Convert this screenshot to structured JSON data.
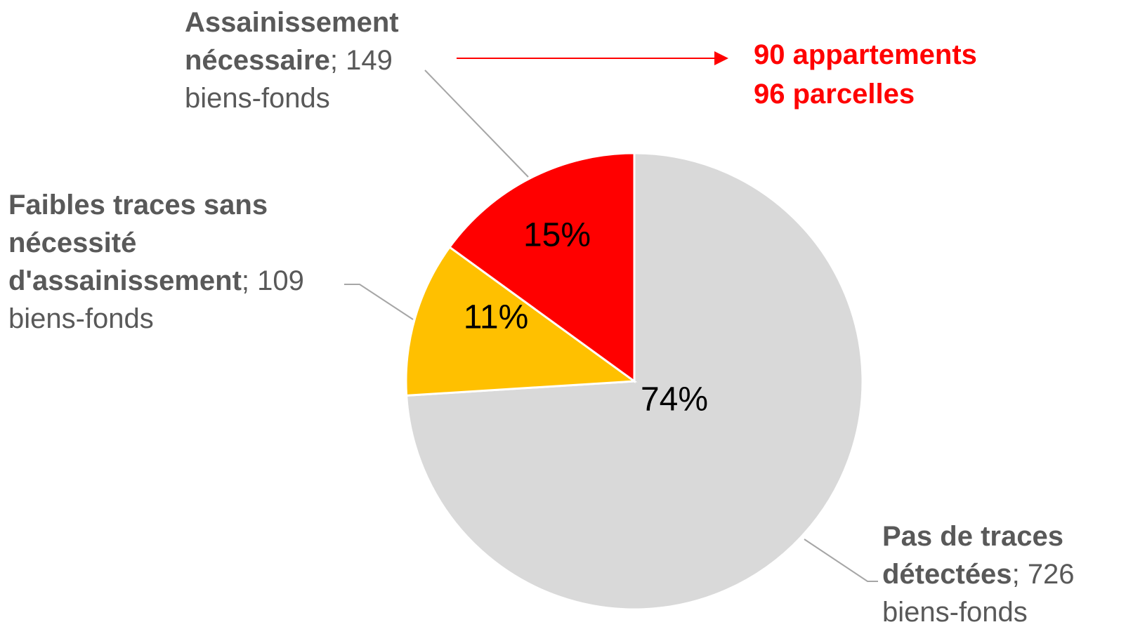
{
  "chart_data": {
    "type": "pie",
    "categories": [
      "Pas de traces détectées",
      "Faibles traces sans nécessité d'assainissement",
      "Assainissement nécessaire"
    ],
    "values": [
      74,
      11,
      15
    ],
    "value_labels": [
      "74%",
      "11%",
      "15%"
    ],
    "colors": [
      "#d9d9d9",
      "#ffc000",
      "#ff0000"
    ],
    "counts": [
      726,
      109,
      149
    ],
    "count_separator": ";",
    "count_unit": "biens-fonds",
    "annotations": [
      "90 appartements",
      "96 parcelles"
    ]
  }
}
